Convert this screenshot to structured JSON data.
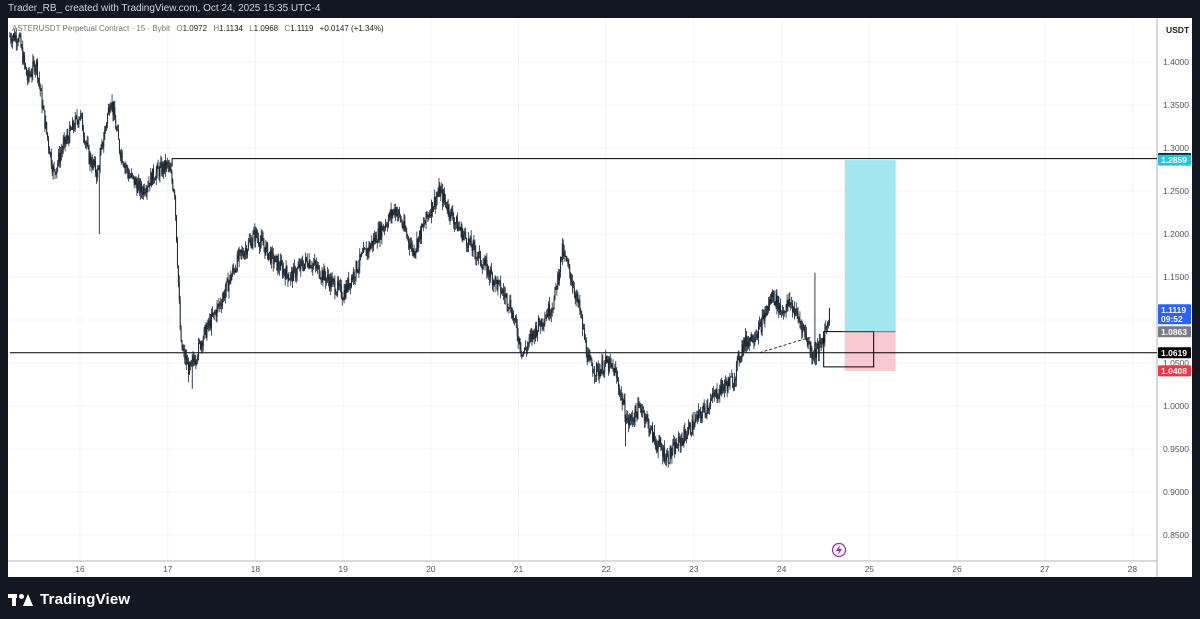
{
  "header": {
    "attribution": "Trader_RB_ created with TradingView.com, Oct 24, 2025 15:35 UTC-4"
  },
  "legend": {
    "symbol": "ASTERUSDT Perpetual Contract · 15 · Bybit",
    "open_label": "O",
    "open": "1.0972",
    "high_label": "H",
    "high": "1.1134",
    "low_label": "L",
    "low": "1.0968",
    "close_label": "C",
    "close": "1.1119",
    "change": "+0.0147 (+1.34%)"
  },
  "chart_data": {
    "type": "candlestick",
    "currency_label": "USDT",
    "ylim": [
      0.82,
      1.46
    ],
    "y_ticks": [
      "1.4000",
      "1.3500",
      "1.3000",
      "1.2500",
      "1.2000",
      "1.1500",
      "1.1000",
      "1.0500",
      "1.0000",
      "0.9500",
      "0.9000",
      "0.8500"
    ],
    "y_tick_values": [
      1.4,
      1.35,
      1.3,
      1.25,
      1.2,
      1.15,
      1.1,
      1.05,
      1.0,
      0.95,
      0.9,
      0.85
    ],
    "x_ticks": [
      "16",
      "17",
      "18",
      "19",
      "20",
      "21",
      "22",
      "23",
      "24",
      "25",
      "26",
      "27",
      "28"
    ],
    "x_tick_days": [
      16,
      17,
      18,
      19,
      20,
      21,
      22,
      23,
      24,
      25,
      26,
      27,
      28
    ],
    "xlim_days": [
      15.2,
      28.3
    ],
    "price_path": [
      [
        15.2,
        1.43
      ],
      [
        15.3,
        1.43
      ],
      [
        15.4,
        1.38
      ],
      [
        15.5,
        1.4
      ],
      [
        15.6,
        1.33
      ],
      [
        15.7,
        1.27
      ],
      [
        15.8,
        1.3
      ],
      [
        15.9,
        1.32
      ],
      [
        16.0,
        1.34
      ],
      [
        16.1,
        1.29
      ],
      [
        16.2,
        1.27
      ],
      [
        16.35,
        1.36
      ],
      [
        16.45,
        1.3
      ],
      [
        16.55,
        1.27
      ],
      [
        16.7,
        1.25
      ],
      [
        16.85,
        1.27
      ],
      [
        17.0,
        1.28
      ],
      [
        17.08,
        1.25
      ],
      [
        17.15,
        1.07
      ],
      [
        17.25,
        1.04
      ],
      [
        17.4,
        1.08
      ],
      [
        17.6,
        1.12
      ],
      [
        17.8,
        1.17
      ],
      [
        18.0,
        1.2
      ],
      [
        18.2,
        1.17
      ],
      [
        18.4,
        1.15
      ],
      [
        18.6,
        1.17
      ],
      [
        18.8,
        1.15
      ],
      [
        19.0,
        1.13
      ],
      [
        19.2,
        1.17
      ],
      [
        19.4,
        1.2
      ],
      [
        19.6,
        1.23
      ],
      [
        19.8,
        1.18
      ],
      [
        20.0,
        1.23
      ],
      [
        20.1,
        1.25
      ],
      [
        20.3,
        1.21
      ],
      [
        20.5,
        1.18
      ],
      [
        20.7,
        1.15
      ],
      [
        20.9,
        1.12
      ],
      [
        21.0,
        1.08
      ],
      [
        21.05,
        1.06
      ],
      [
        21.2,
        1.09
      ],
      [
        21.4,
        1.12
      ],
      [
        21.5,
        1.18
      ],
      [
        21.6,
        1.15
      ],
      [
        21.7,
        1.11
      ],
      [
        21.8,
        1.05
      ],
      [
        21.9,
        1.04
      ],
      [
        22.0,
        1.05
      ],
      [
        22.1,
        1.04
      ],
      [
        22.25,
        0.98
      ],
      [
        22.4,
        1.0
      ],
      [
        22.55,
        0.96
      ],
      [
        22.7,
        0.94
      ],
      [
        22.85,
        0.96
      ],
      [
        23.0,
        0.98
      ],
      [
        23.15,
        1.0
      ],
      [
        23.3,
        1.02
      ],
      [
        23.45,
        1.03
      ],
      [
        23.55,
        1.07
      ],
      [
        23.75,
        1.09
      ],
      [
        23.9,
        1.13
      ],
      [
        24.0,
        1.11
      ],
      [
        24.1,
        1.12
      ],
      [
        24.2,
        1.1
      ],
      [
        24.25,
        1.09
      ],
      [
        24.35,
        1.06
      ],
      [
        24.45,
        1.07
      ],
      [
        24.55,
        1.11
      ]
    ],
    "horizontal_levels": [
      {
        "label": "1.2877",
        "value": 1.2877,
        "from_day": 17.05
      },
      {
        "label": "1.0619",
        "value": 1.0619,
        "from_day": 15.2
      }
    ],
    "position": {
      "type": "long",
      "start_day": 24.72,
      "end_day": 25.3,
      "entry": 1.0863,
      "target": 1.2859,
      "stop": 1.0408
    },
    "consolidation_box": {
      "start_day": 24.48,
      "end_day": 25.05,
      "top": 1.0865,
      "bottom": 1.0455
    },
    "trendline": {
      "from": [
        23.75,
        1.062
      ],
      "to": [
        24.33,
        1.08
      ]
    },
    "price_tags": [
      {
        "label": "1.2877",
        "value": 1.2877,
        "bg": "#000000",
        "fg": "#ffffff"
      },
      {
        "label": "1.2859",
        "value": 1.2859,
        "bg": "#26c6da",
        "fg": "#ffffff"
      },
      {
        "label": "1.1119",
        "sub": "09:52",
        "value": 1.1119,
        "bg": "#2962ff",
        "fg": "#ffffff"
      },
      {
        "label": "1.0863",
        "value": 1.0863,
        "bg": "#787b86",
        "fg": "#ffffff"
      },
      {
        "label": "1.0619",
        "value": 1.0619,
        "bg": "#000000",
        "fg": "#ffffff"
      },
      {
        "label": "1.0408",
        "value": 1.0408,
        "bg": "#f23645",
        "fg": "#ffffff"
      }
    ],
    "colors": {
      "candle": "#1c2733",
      "target_zone": "#a3e6ef",
      "stop_zone": "#f8c9ce",
      "grid": "#f0f3fa",
      "level_line": "#000000",
      "event_icon": "#9c27b0"
    }
  },
  "footer": {
    "brand": "TradingView"
  }
}
